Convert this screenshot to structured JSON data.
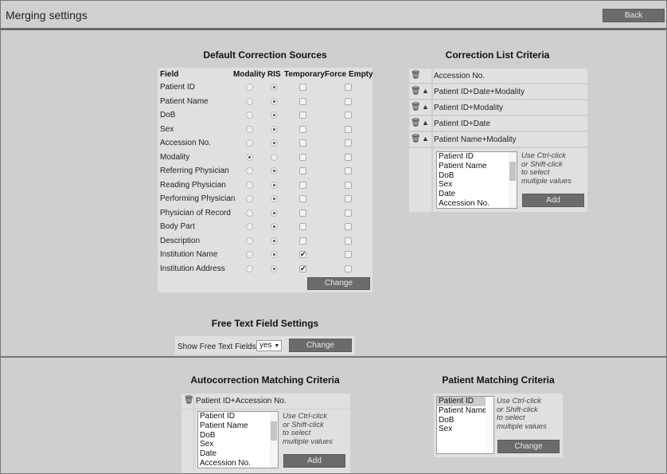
{
  "header": {
    "title": "Merging settings",
    "back_label": "Back"
  },
  "default_sources": {
    "title": "Default Correction Sources",
    "columns": [
      "Field",
      "Modality",
      "RIS",
      "Temporary",
      "Force Empty"
    ],
    "rows": [
      {
        "field": "Patient ID",
        "source": "RIS",
        "temporary": false,
        "force_empty": false
      },
      {
        "field": "Patient Name",
        "source": "RIS",
        "temporary": false,
        "force_empty": false
      },
      {
        "field": "DoB",
        "source": "RIS",
        "temporary": false,
        "force_empty": false
      },
      {
        "field": "Sex",
        "source": "RIS",
        "temporary": false,
        "force_empty": false
      },
      {
        "field": "Accession No.",
        "source": "RIS",
        "temporary": false,
        "force_empty": false
      },
      {
        "field": "Modality",
        "source": "Modality",
        "temporary": false,
        "force_empty": false
      },
      {
        "field": "Referring Physician",
        "source": "RIS",
        "temporary": false,
        "force_empty": false
      },
      {
        "field": "Reading Physician",
        "source": "RIS",
        "temporary": false,
        "force_empty": false
      },
      {
        "field": "Performing Physician",
        "source": "RIS",
        "temporary": false,
        "force_empty": false
      },
      {
        "field": "Physician of Record",
        "source": "RIS",
        "temporary": false,
        "force_empty": false
      },
      {
        "field": "Body Part",
        "source": "RIS",
        "temporary": false,
        "force_empty": false
      },
      {
        "field": "Description",
        "source": "RIS",
        "temporary": false,
        "force_empty": false
      },
      {
        "field": "Institution Name",
        "source": "RIS",
        "temporary": true,
        "force_empty": false
      },
      {
        "field": "Institution Address",
        "source": "RIS",
        "temporary": true,
        "force_empty": false
      }
    ],
    "change_label": "Change"
  },
  "correction_list": {
    "title": "Correction List Criteria",
    "items": [
      "Accession No.",
      "Patient ID+Date+Modality",
      "Patient ID+Modality",
      "Patient ID+Date",
      "Patient Name+Modality"
    ],
    "options": [
      "Patient ID",
      "Patient Name",
      "DoB",
      "Sex",
      "Date",
      "Accession No."
    ],
    "hint": [
      "Use Ctrl-click",
      "or Shift-click",
      "to select",
      "multiple values"
    ],
    "add_label": "Add"
  },
  "free_text": {
    "title": "Free Text Field Settings",
    "label": "Show Free Text Fields:",
    "value": "yes",
    "change_label": "Change"
  },
  "autocorrection": {
    "title": "Autocorrection Matching Criteria",
    "items": [
      "Patient ID+Accession No."
    ],
    "options": [
      "Patient ID",
      "Patient Name",
      "DoB",
      "Sex",
      "Date",
      "Accession No."
    ],
    "hint": [
      "Use Ctrl-click",
      "or Shift-click",
      "to select",
      "multiple values"
    ],
    "add_label": "Add"
  },
  "patient_matching": {
    "title": "Patient Matching Criteria",
    "options": [
      "Patient ID",
      "Patient Name",
      "DoB",
      "Sex"
    ],
    "selected": "Patient ID",
    "hint": [
      "Use Ctrl-click",
      "or Shift-click",
      "to select",
      "multiple values"
    ],
    "change_label": "Change"
  }
}
